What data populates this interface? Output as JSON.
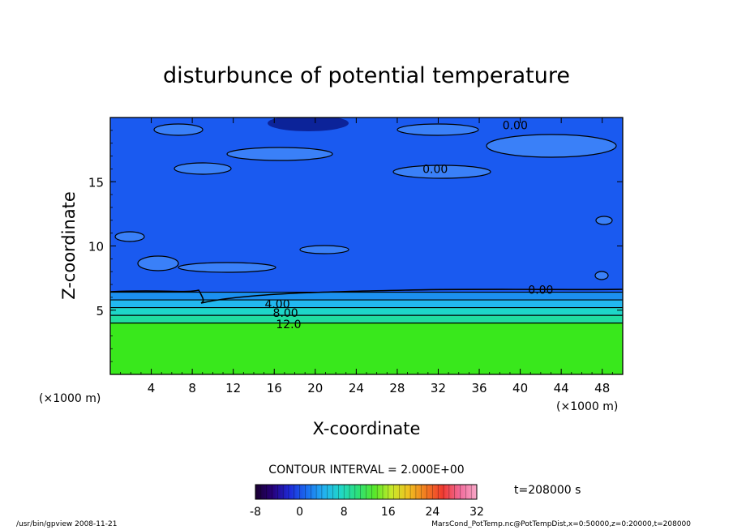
{
  "chart_data": {
    "type": "heatmap",
    "title": "disturbunce of potential temperature",
    "xlabel": "X-coordinate",
    "ylabel": "Z-coordinate",
    "x_unit": "(×1000 m)",
    "y_unit": "(×1000 m)",
    "xlim": [
      0,
      50
    ],
    "ylim": [
      0,
      20
    ],
    "x_ticks": [
      4,
      8,
      12,
      16,
      20,
      24,
      28,
      32,
      36,
      40,
      44,
      48
    ],
    "y_ticks": [
      5,
      10,
      15
    ],
    "contour_interval_label": "CONTOUR INTERVAL = 2.000E+00",
    "time_label": "t=208000 s",
    "contour_labels": [
      {
        "text": "0.00",
        "x": 39.5,
        "z": 19.4
      },
      {
        "text": "0.00",
        "x": 31.7,
        "z": 16.0
      },
      {
        "text": "0.00",
        "x": 42.0,
        "z": 6.6
      },
      {
        "text": "4.00",
        "x": 16.3,
        "z": 5.5
      },
      {
        "text": "8.00",
        "x": 17.1,
        "z": 4.8
      },
      {
        "text": "12.0",
        "x": 17.4,
        "z": 3.9
      }
    ],
    "layers": [
      {
        "z_bottom": 0,
        "z_top": 4.0,
        "value": 16,
        "color": "#39e81c"
      },
      {
        "z_bottom": 4.0,
        "z_top": 4.6,
        "value": 12,
        "color": "#20dca0"
      },
      {
        "z_bottom": 4.6,
        "z_top": 5.2,
        "value": 9,
        "color": "#1ed6c8"
      },
      {
        "z_bottom": 5.2,
        "z_top": 5.8,
        "value": 5,
        "color": "#22b8f0"
      },
      {
        "z_bottom": 5.8,
        "z_top": 6.4,
        "value": 2,
        "color": "#1c90f0"
      },
      {
        "z_bottom": 6.4,
        "z_top": 20,
        "value": -1,
        "color": "#1a5af0"
      }
    ],
    "colorbar": {
      "min": -8,
      "max": 32,
      "tick_values": [
        -8,
        0,
        8,
        16,
        24,
        32
      ],
      "colors": [
        "#1a0030",
        "#26007a",
        "#1e2ad8",
        "#1a6cf0",
        "#22b0f0",
        "#20d6c8",
        "#2ce07a",
        "#58e82a",
        "#c8e82a",
        "#f0c020",
        "#f07a20",
        "#f03a30",
        "#f06a9a",
        "#f8a8c8"
      ]
    }
  },
  "footer": {
    "left": "/usr/bin/gpview   2008-11-21",
    "right": "MarsCond_PotTemp.nc@PotTempDist,x=0:50000,z=0:20000,t=208000"
  }
}
